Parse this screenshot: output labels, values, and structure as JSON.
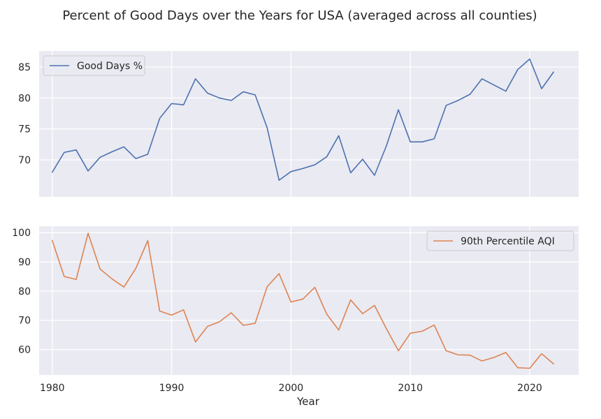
{
  "figure": {
    "title": "Percent of Good Days over the Years for USA (averaged across all counties)",
    "xlabel": "Year"
  },
  "chart_data": [
    {
      "type": "line",
      "series": [
        {
          "name": "Good Days %",
          "color": "#4c72b0",
          "x": [
            1980,
            1981,
            1982,
            1983,
            1984,
            1985,
            1986,
            1987,
            1988,
            1989,
            1990,
            1991,
            1992,
            1993,
            1994,
            1995,
            1996,
            1997,
            1998,
            1999,
            2000,
            2001,
            2002,
            2003,
            2004,
            2005,
            2006,
            2007,
            2008,
            2009,
            2010,
            2011,
            2012,
            2013,
            2014,
            2015,
            2016,
            2017,
            2018,
            2019,
            2020,
            2021,
            2022
          ],
          "values": [
            68.0,
            71.2,
            71.6,
            68.2,
            70.4,
            71.3,
            72.1,
            70.2,
            70.9,
            76.7,
            79.1,
            78.9,
            83.1,
            80.8,
            80.0,
            79.6,
            81.0,
            80.5,
            75.2,
            66.7,
            68.1,
            68.6,
            69.2,
            70.5,
            73.9,
            67.9,
            70.1,
            67.5,
            72.3,
            78.1,
            72.9,
            72.9,
            73.4,
            78.8,
            79.6,
            80.6,
            83.1,
            82.1,
            81.1,
            84.6,
            86.3,
            81.5,
            84.2
          ]
        }
      ],
      "xlim": [
        1978.9,
        2024.1
      ],
      "ylim": [
        64.0,
        87.6
      ],
      "yticks": [
        70,
        75,
        80,
        85
      ],
      "xticks": [
        1980,
        1990,
        2000,
        2010,
        2020
      ],
      "legend": "top-left",
      "grid": true
    },
    {
      "type": "line",
      "series": [
        {
          "name": "90th Percentile AQI",
          "color": "#dd8452",
          "x": [
            1980,
            1981,
            1982,
            1983,
            1984,
            1985,
            1986,
            1987,
            1988,
            1989,
            1990,
            1991,
            1992,
            1993,
            1994,
            1995,
            1996,
            1997,
            1998,
            1999,
            2000,
            2001,
            2002,
            2003,
            2004,
            2005,
            2006,
            2007,
            2008,
            2009,
            2010,
            2011,
            2012,
            2013,
            2014,
            2015,
            2016,
            2017,
            2018,
            2019,
            2020,
            2021,
            2022
          ],
          "values": [
            97.3,
            85.0,
            84.0,
            99.8,
            87.6,
            84.2,
            81.4,
            87.8,
            97.3,
            73.2,
            71.8,
            73.6,
            62.6,
            67.9,
            69.5,
            72.6,
            68.3,
            69.0,
            81.5,
            86.0,
            76.3,
            77.3,
            81.3,
            72.1,
            66.7,
            77.0,
            72.3,
            75.1,
            67.1,
            59.6,
            65.6,
            66.3,
            68.4,
            59.6,
            58.2,
            58.1,
            56.1,
            57.3,
            59.0,
            53.8,
            53.6,
            58.6,
            55.1
          ]
        }
      ],
      "xlim": [
        1978.9,
        2024.1
      ],
      "ylim": [
        51.3,
        102.2
      ],
      "yticks": [
        60,
        70,
        80,
        90,
        100
      ],
      "xticks": [
        1980,
        1990,
        2000,
        2010,
        2020
      ],
      "legend": "top-right",
      "grid": true
    }
  ]
}
